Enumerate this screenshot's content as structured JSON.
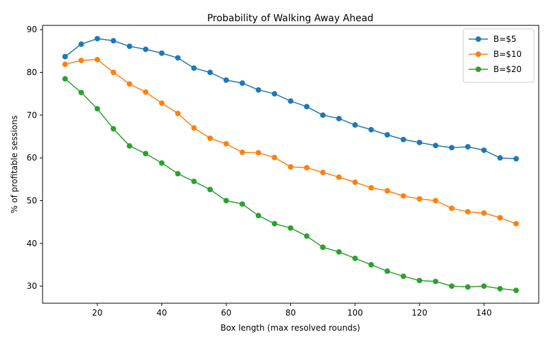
{
  "chart_data": {
    "type": "line",
    "title": "Probability of Walking Away Ahead",
    "xlabel": "Box length (max resolved rounds)",
    "ylabel": "% of profitable sessions",
    "xlim": [
      3,
      157
    ],
    "ylim": [
      26,
      91
    ],
    "xticks": [
      20,
      40,
      60,
      80,
      100,
      120,
      140
    ],
    "yticks": [
      30,
      40,
      50,
      60,
      70,
      80,
      90
    ],
    "grid": false,
    "legend_position": "top-right",
    "x": [
      10,
      15,
      20,
      25,
      30,
      35,
      40,
      45,
      50,
      55,
      60,
      65,
      70,
      75,
      80,
      85,
      90,
      95,
      100,
      105,
      110,
      115,
      120,
      125,
      130,
      135,
      140,
      145,
      150
    ],
    "series": [
      {
        "name": "B=$5",
        "color": "#1f77b4",
        "values": [
          83.7,
          86.6,
          87.9,
          87.4,
          86.1,
          85.4,
          84.5,
          83.4,
          81.0,
          80.0,
          78.2,
          77.5,
          75.9,
          75.0,
          73.3,
          72.0,
          70.0,
          69.2,
          67.7,
          66.6,
          65.4,
          64.3,
          63.6,
          62.9,
          62.4,
          62.6,
          61.8,
          60.0,
          59.8
        ]
      },
      {
        "name": "B=$10",
        "color": "#ff7f0e",
        "values": [
          81.9,
          82.8,
          83.0,
          80.0,
          77.3,
          75.4,
          72.8,
          70.4,
          67.0,
          64.6,
          63.3,
          61.3,
          61.2,
          60.1,
          57.9,
          57.7,
          56.6,
          55.5,
          54.3,
          53.0,
          52.3,
          51.1,
          50.4,
          50.0,
          48.2,
          47.4,
          47.1,
          46.0,
          44.6
        ]
      },
      {
        "name": "B=$20",
        "color": "#2ca02c",
        "values": [
          78.5,
          75.3,
          71.5,
          66.8,
          62.8,
          61.0,
          58.8,
          56.3,
          54.5,
          52.6,
          50.0,
          49.2,
          46.5,
          44.6,
          43.6,
          41.7,
          39.1,
          38.0,
          36.5,
          35.0,
          33.5,
          32.3,
          31.3,
          31.1,
          30.0,
          29.8,
          30.0,
          29.4,
          29.0
        ]
      }
    ]
  }
}
